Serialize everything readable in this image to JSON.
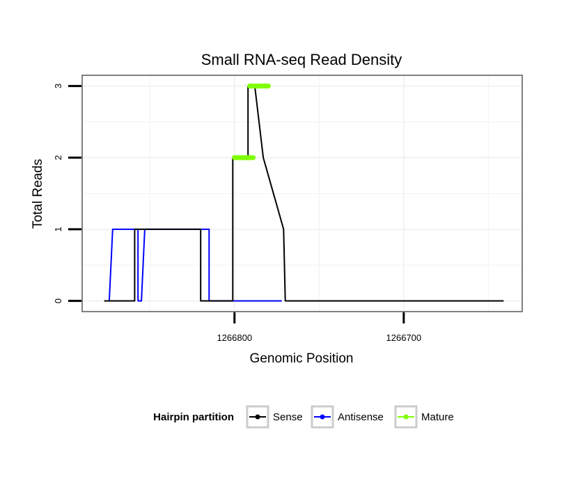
{
  "chart_data": {
    "type": "line",
    "title": "Small RNA-seq Read Density",
    "xlabel": "Genomic Position",
    "ylabel": "Total Reads",
    "x_reversed": true,
    "xlim": [
      1266890,
      1266630
    ],
    "ylim": [
      -0.15,
      3.15
    ],
    "x_ticks": [
      1266800,
      1266700
    ],
    "x_tick_labels": [
      "1266800",
      "1266700"
    ],
    "y_ticks": [
      0,
      1,
      2,
      3
    ],
    "y_tick_labels": [
      "0",
      "1",
      "2",
      "3"
    ],
    "grid": true,
    "legend": {
      "title": "Hairpin partition",
      "position": "bottom",
      "items": [
        {
          "label": "Sense",
          "color": "#000000"
        },
        {
          "label": "Antisense",
          "color": "#0000ff"
        },
        {
          "label": "Mature",
          "color": "#7fff00"
        }
      ]
    },
    "series": [
      {
        "name": "Sense",
        "color": "#000000",
        "x": [
          1266877,
          1266859,
          1266859,
          1266849,
          1266849,
          1266820,
          1266820,
          1266818,
          1266818,
          1266808,
          1266808,
          1266801,
          1266801,
          1266798,
          1266798,
          1266792,
          1266792,
          1266788,
          1266788,
          1266783,
          1266783,
          1266771,
          1266771,
          1266770,
          1266770,
          1266641
        ],
        "y": [
          0,
          0,
          1,
          1,
          1,
          1,
          0,
          0,
          0,
          0,
          0,
          0,
          2,
          2,
          2,
          2,
          3,
          3,
          3,
          2,
          2,
          1,
          1,
          0,
          0,
          0
        ]
      },
      {
        "name": "Antisense",
        "color": "#0000ff",
        "x": [
          1266874,
          1266872,
          1266872,
          1266857,
          1266857,
          1266855,
          1266855,
          1266853,
          1266853,
          1266815,
          1266815,
          1266813,
          1266813,
          1266772
        ],
        "y": [
          0,
          1,
          1,
          1,
          0,
          0,
          0,
          1,
          1,
          1,
          0,
          0,
          0,
          0
        ]
      },
      {
        "name": "Mature",
        "color": "#7fff00",
        "segments": [
          {
            "x": [
              1266800,
              1266789
            ],
            "y": [
              2,
              2
            ]
          },
          {
            "x": [
              1266791,
              1266780
            ],
            "y": [
              3,
              3
            ]
          }
        ]
      }
    ]
  }
}
